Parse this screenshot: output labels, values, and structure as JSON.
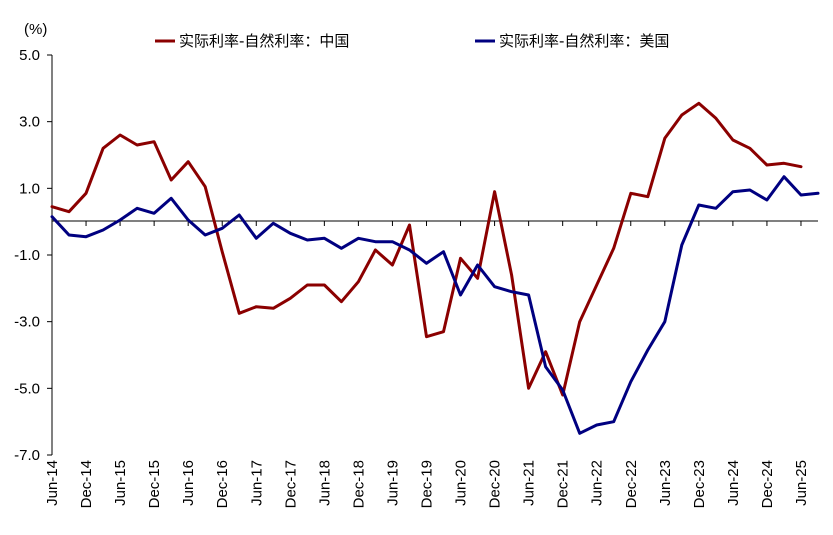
{
  "chart_data": {
    "type": "line",
    "title": "",
    "unit_label": "(%)",
    "xlabel": "",
    "ylabel": "",
    "ylim": [
      -7.0,
      5.0
    ],
    "yticks": [
      5.0,
      3.0,
      1.0,
      -1.0,
      -3.0,
      -5.0,
      -7.0
    ],
    "ytick_labels": [
      "5.0",
      "3.0",
      "1.0",
      "-1.0",
      "-3.0",
      "-5.0",
      "-7.0"
    ],
    "x_tick_labels": [
      "Jun-14",
      "Dec-14",
      "Jun-15",
      "Dec-15",
      "Jun-16",
      "Dec-16",
      "Jun-17",
      "Dec-17",
      "Jun-18",
      "Dec-18",
      "Jun-19",
      "Dec-19",
      "Jun-20",
      "Dec-20",
      "Jun-21",
      "Dec-21",
      "Jun-22",
      "Dec-22",
      "Jun-23",
      "Dec-23",
      "Jun-24",
      "Dec-24",
      "Jun-25"
    ],
    "x_step": "quarterly",
    "legend_position": "top",
    "series": [
      {
        "name": "实际利率-自然利率：中国",
        "color": "#8B0000",
        "values": [
          0.45,
          0.3,
          0.85,
          2.2,
          2.6,
          2.3,
          2.4,
          1.25,
          1.8,
          1.05,
          -0.9,
          -2.75,
          -2.55,
          -2.6,
          -2.3,
          -1.9,
          -1.9,
          -2.4,
          -1.8,
          -0.85,
          -1.3,
          -0.1,
          -3.45,
          -3.3,
          -1.1,
          -1.7,
          0.9,
          -1.6,
          -5.0,
          -3.9,
          -5.2,
          -3.0,
          -1.9,
          -0.8,
          0.85,
          0.75,
          2.5,
          3.2,
          3.55,
          3.1,
          2.45,
          2.2,
          1.7,
          1.75,
          1.65
        ]
      },
      {
        "name": "实际利率-自然利率：美国",
        "color": "#000080",
        "values": [
          0.15,
          -0.4,
          -0.45,
          -0.25,
          0.05,
          0.4,
          0.25,
          0.7,
          0.05,
          -0.4,
          -0.2,
          0.2,
          -0.5,
          -0.05,
          -0.35,
          -0.55,
          -0.5,
          -0.8,
          -0.5,
          -0.6,
          -0.6,
          -0.85,
          -1.25,
          -0.9,
          -2.2,
          -1.3,
          -1.95,
          -2.1,
          -2.2,
          -4.35,
          -5.05,
          -6.35,
          -6.1,
          -6.0,
          -4.8,
          -3.85,
          -3.0,
          -0.7,
          0.5,
          0.4,
          0.9,
          0.95,
          0.65,
          1.35,
          0.8,
          0.85
        ]
      }
    ]
  }
}
